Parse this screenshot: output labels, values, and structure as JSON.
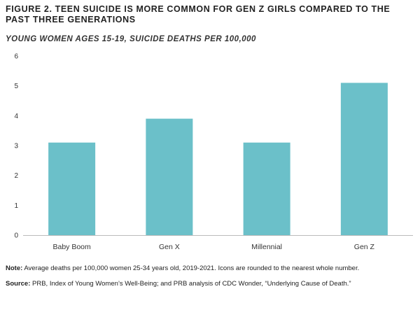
{
  "figure": {
    "title": "FIGURE 2. TEEN SUICIDE IS MORE COMMON FOR GEN Z GIRLS COMPARED TO THE PAST THREE GENERATIONS",
    "subtitle": "YOUNG WOMEN AGES 15-19, SUICIDE DEATHS PER 100,000"
  },
  "chart_data": {
    "type": "bar",
    "title": "FIGURE 2. TEEN SUICIDE IS MORE COMMON FOR GEN Z GIRLS COMPARED TO THE PAST THREE GENERATIONS",
    "subtitle": "YOUNG WOMEN AGES 15-19, SUICIDE DEATHS PER 100,000",
    "categories": [
      "Baby Boom",
      "Gen X",
      "Millennial",
      "Gen Z"
    ],
    "values": [
      3.1,
      3.9,
      3.1,
      5.1
    ],
    "xlabel": "",
    "ylabel": "",
    "ylim": [
      0,
      6
    ],
    "yticks": [
      0,
      1,
      2,
      3,
      4,
      5,
      6
    ],
    "grid": false,
    "legend": "none",
    "bar_color": "#6bc0c9",
    "axis_color": "#bbbbbb"
  },
  "footnotes": {
    "note_label": "Note:",
    "note_text": " Average deaths per 100,000 women 25-34 years old, 2019-2021. Icons are rounded to the nearest whole number.",
    "source_label": "Source:",
    "source_text": " PRB, Index of Young Women’s Well-Being; and PRB analysis of CDC Wonder, “Underlying Cause of Death.”"
  }
}
